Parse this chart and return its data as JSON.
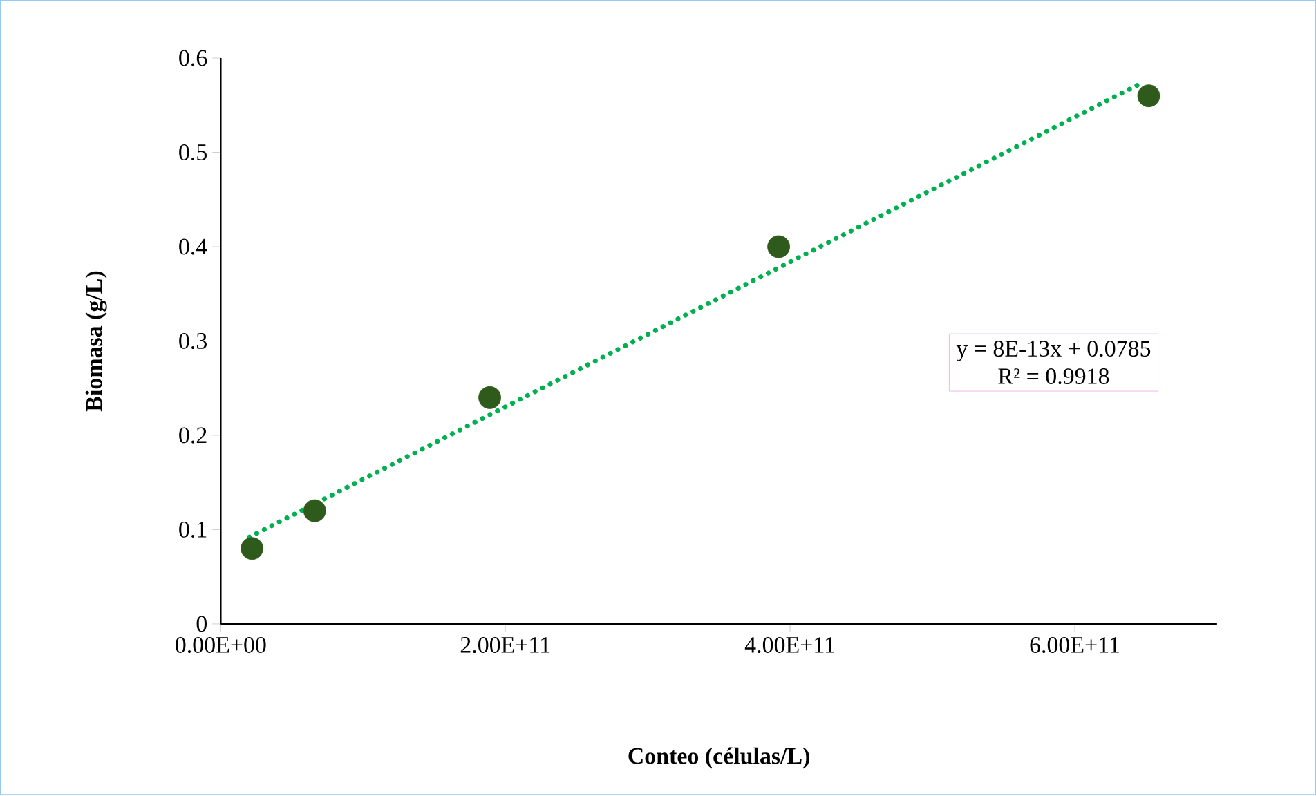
{
  "chart_data": {
    "type": "scatter",
    "xlabel": "Conteo (células/L)",
    "ylabel": "Biomasa (g/L)",
    "xlim": [
      0,
      700000000000
    ],
    "ylim": [
      0,
      0.6
    ],
    "xticks": [
      {
        "value": 0,
        "label": "0.00E+00"
      },
      {
        "value": 200000000000,
        "label": "2.00E+11"
      },
      {
        "value": 400000000000,
        "label": "4.00E+11"
      },
      {
        "value": 600000000000,
        "label": "6.00E+11"
      }
    ],
    "yticks": [
      0,
      0.1,
      0.2,
      0.3,
      0.4,
      0.5,
      0.6
    ],
    "series": [
      {
        "color": "#2e5a1c",
        "marker": "circle",
        "x": [
          22000000000,
          66000000000,
          189000000000,
          392000000000,
          652000000000
        ],
        "values": [
          0.08,
          0.12,
          0.24,
          0.4,
          0.56
        ]
      },
      {
        "type": "line",
        "color": "#00b050",
        "line_style": "dotted",
        "marker": "none",
        "x": [
          20000000000,
          645000000000
        ],
        "values": [
          0.092,
          0.572
        ]
      }
    ],
    "annotations": [
      "y = 8E-13x + 0.0785",
      "R² = 0.9918"
    ],
    "grid": false
  }
}
